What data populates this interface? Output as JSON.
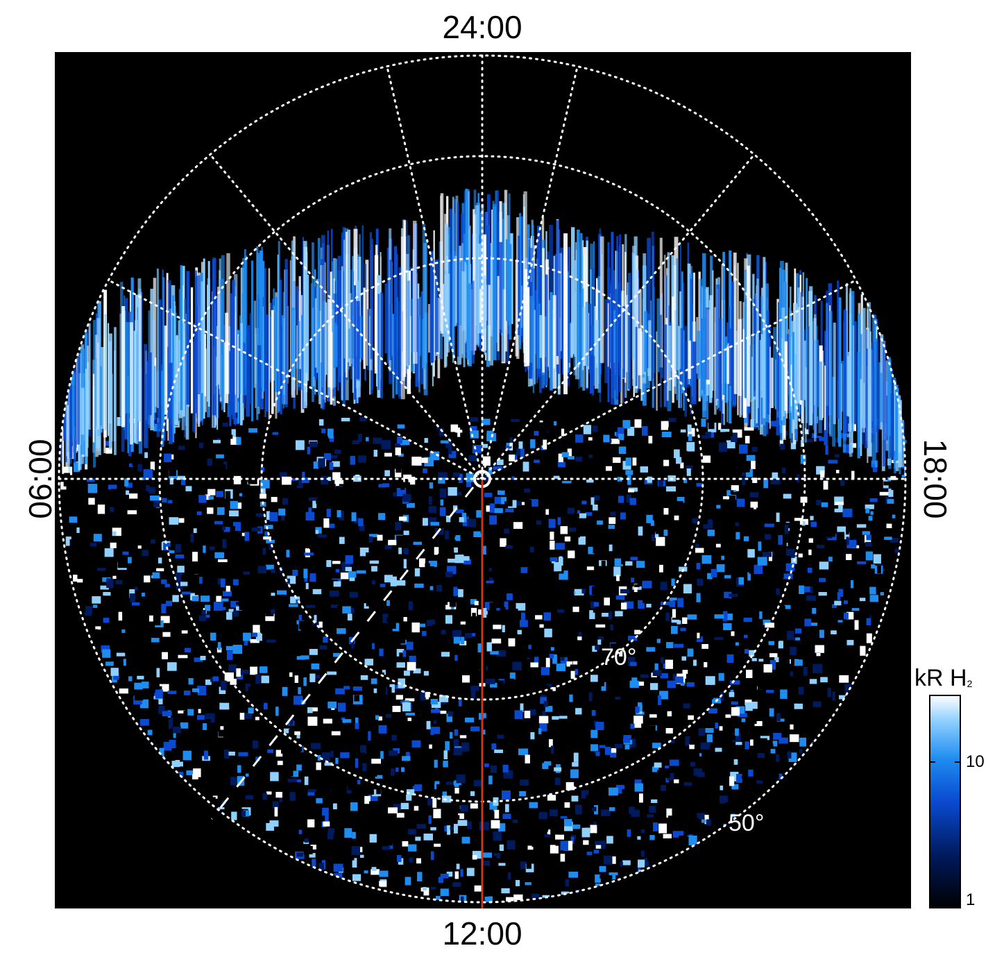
{
  "figure": {
    "local_time_top": "24:00",
    "local_time_bottom": "12:00",
    "local_time_left": "06:00",
    "local_time_right": "18:00",
    "latitude_labels": [
      "70°",
      "50°"
    ]
  },
  "colorbar": {
    "title_main": "kR H",
    "title_sub": "2",
    "scale": "log",
    "tick_labels": [
      "10",
      "1"
    ],
    "colors": [
      "#000000",
      "#001a5e",
      "#0a4ad0",
      "#1f8cf0",
      "#8fd0ff",
      "#ffffff"
    ]
  },
  "colors": {
    "background": "#000000",
    "grid": "#ffffff",
    "meridian_line": "#c8361b"
  }
}
